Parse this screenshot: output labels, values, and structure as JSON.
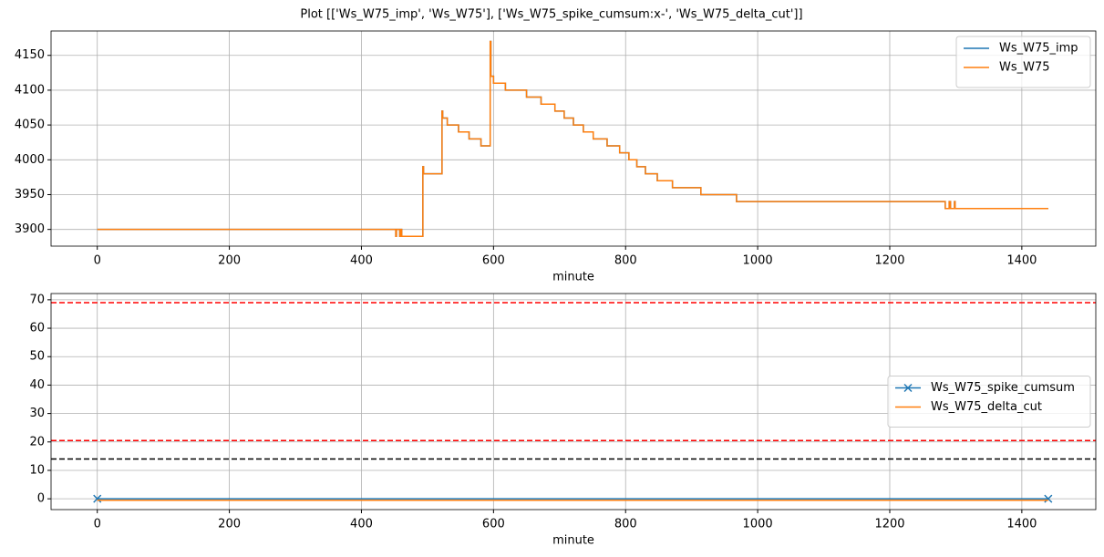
{
  "title": "Plot [['Ws_W75_imp', 'Ws_W75'], ['Ws_W75_spike_cumsum:x-', 'Ws_W75_delta_cut']]",
  "chart_data": [
    {
      "type": "line",
      "drawstyle": "steps-post",
      "xlabel": "minute",
      "x": [
        0,
        452,
        453,
        458,
        460,
        461,
        493,
        494,
        522,
        523,
        530,
        547,
        563,
        581,
        595,
        596,
        600,
        618,
        650,
        672,
        693,
        707,
        721,
        736,
        751,
        772,
        791,
        805,
        817,
        830,
        848,
        871,
        914,
        968,
        1284,
        1290,
        1292,
        1298,
        1299,
        1440
      ],
      "series": [
        {
          "name": "Ws_W75_imp",
          "color": "#1f77b4",
          "values": [
            3900,
            3890,
            3900,
            3890,
            3900,
            3890,
            3990,
            3980,
            4070,
            4060,
            4050,
            4040,
            4030,
            4020,
            4170,
            4120,
            4110,
            4100,
            4090,
            4080,
            4070,
            4060,
            4050,
            4040,
            4030,
            4020,
            4010,
            4000,
            3990,
            3980,
            3970,
            3960,
            3950,
            3940,
            3930,
            3940,
            3930,
            3940,
            3930,
            3930
          ]
        },
        {
          "name": "Ws_W75",
          "color": "#ff7f0e",
          "values": [
            3900,
            3890,
            3900,
            3890,
            3900,
            3890,
            3990,
            3980,
            4070,
            4060,
            4050,
            4040,
            4030,
            4020,
            4170,
            4120,
            4110,
            4100,
            4090,
            4080,
            4070,
            4060,
            4050,
            4040,
            4030,
            4020,
            4010,
            4000,
            3990,
            3980,
            3970,
            3960,
            3950,
            3940,
            3930,
            3940,
            3930,
            3940,
            3930,
            3930
          ]
        }
      ],
      "xlim": [
        -70,
        1512
      ],
      "xticks": [
        0,
        200,
        400,
        600,
        800,
        1000,
        1200,
        1400
      ],
      "ylim": [
        3876,
        4185
      ],
      "yticks": [
        3900,
        3950,
        4000,
        4050,
        4100,
        4150
      ],
      "grid": true,
      "legend": "upper right"
    },
    {
      "type": "line",
      "xlabel": "minute",
      "x": [
        0,
        1440
      ],
      "series": [
        {
          "name": "Ws_W75_spike_cumsum",
          "color": "#1f77b4",
          "marker": "x",
          "values": [
            0,
            0
          ]
        },
        {
          "name": "Ws_W75_delta_cut",
          "color": "#ff7f0e",
          "values": [
            -0.5,
            -0.5
          ]
        }
      ],
      "hlines": [
        {
          "value": 69,
          "color": "#ff0000"
        },
        {
          "value": 20.5,
          "color": "#ff0000"
        },
        {
          "value": 14,
          "color": "#000000"
        }
      ],
      "xlim": [
        -70,
        1512
      ],
      "xticks": [
        0,
        200,
        400,
        600,
        800,
        1000,
        1200,
        1400
      ],
      "ylim": [
        -3.8,
        72.2
      ],
      "yticks": [
        0,
        10,
        20,
        30,
        40,
        50,
        60,
        70
      ],
      "grid": true,
      "legend": "center right"
    }
  ]
}
